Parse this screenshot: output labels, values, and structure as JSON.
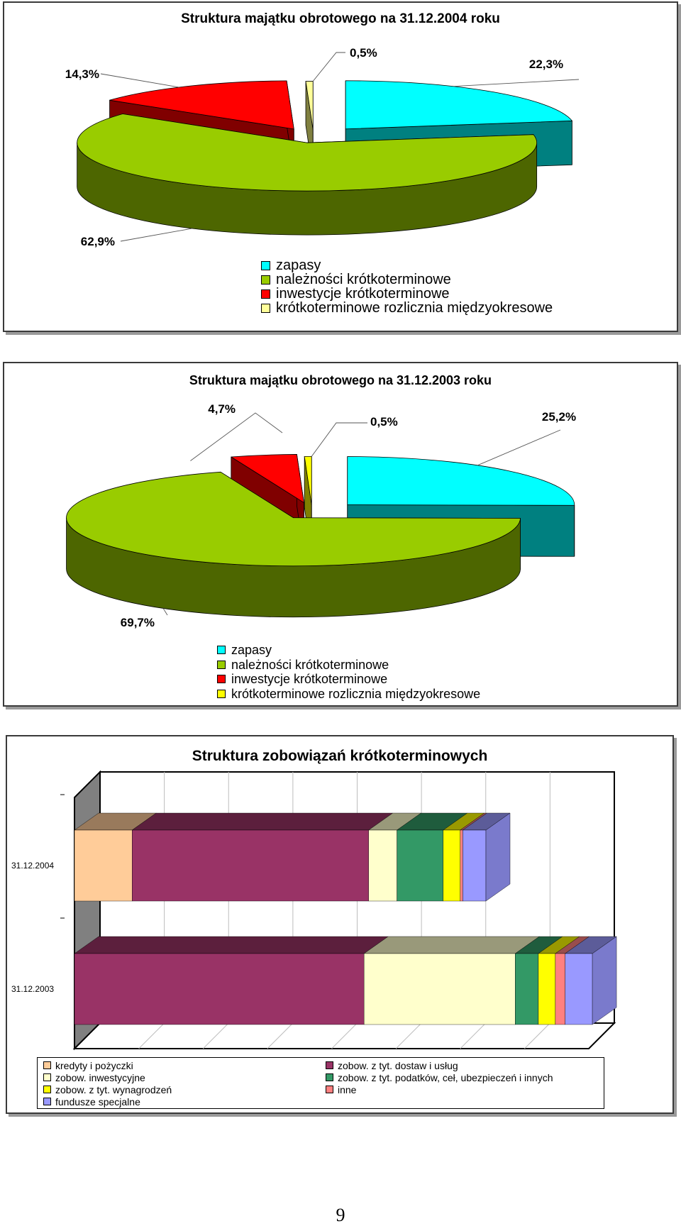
{
  "chart_data": [
    {
      "type": "pie",
      "title": "Struktura majątku obrotowego na 31.12.2004 roku",
      "categories": [
        "zapasy",
        "należności krótkoterminowe",
        "inwestycje krótkoterminowe",
        "krótkoterminowe rozlicznia międzyokresowe"
      ],
      "values": [
        22.3,
        62.9,
        14.3,
        0.5
      ],
      "labels": [
        "22,3%",
        "62,9%",
        "14,3%",
        "0,5%"
      ],
      "colors": [
        "#00FFFF",
        "#99CC00",
        "#FF0000",
        "#FFFF99"
      ],
      "side_colors": [
        "#008080",
        "#4D6600",
        "#800000",
        "#808040"
      ],
      "legend": "bottom"
    },
    {
      "type": "pie",
      "title": "Struktura majątku obrotowego na 31.12.2003 roku",
      "categories": [
        "zapasy",
        "należności krótkoterminowe",
        "inwestycje krótkoterminowe",
        "krótkoterminowe rozlicznia międzyokresowe"
      ],
      "values": [
        25.2,
        69.7,
        4.7,
        0.5
      ],
      "labels": [
        "25,2%",
        "69,7%",
        "4,7%",
        "0,5%"
      ],
      "colors": [
        "#00FFFF",
        "#99CC00",
        "#FF0000",
        "#FFFF00"
      ],
      "side_colors": [
        "#008080",
        "#4D6600",
        "#800000",
        "#808000"
      ],
      "legend": "bottom"
    },
    {
      "type": "bar",
      "orientation": "horizontal",
      "stacked": true,
      "title": "Struktura zobowiązań krótkoterminowych",
      "categories": [
        "31.12.2004",
        "31.12.2003"
      ],
      "series": [
        {
          "name": "kredyty i pożyczki",
          "color": "#FFCC99",
          "values": [
            11.2,
            0
          ]
        },
        {
          "name": "zobow. z tyt. dostaw i usług",
          "color": "#993366",
          "values": [
            46.0,
            56.3
          ]
        },
        {
          "name": "zobow. inwestycyjne",
          "color": "#FFFFCC",
          "values": [
            5.5,
            29.4
          ]
        },
        {
          "name": "zobow. z tyt. podatków, ceł, ubezpieczeń i innych",
          "color": "#339966",
          "values": [
            9.0,
            4.5
          ]
        },
        {
          "name": "zobow. z tyt. wynagrodzeń",
          "color": "#FFFF00",
          "values": [
            3.3,
            3.3
          ]
        },
        {
          "name": "inne",
          "color": "#FF8080",
          "values": [
            0.5,
            1.9
          ]
        },
        {
          "name": "fundusze specjalne",
          "color": "#9999FF",
          "values": [
            4.5,
            5.3
          ]
        }
      ],
      "legend": "bottom",
      "grid": true
    }
  ],
  "page_number": "9"
}
